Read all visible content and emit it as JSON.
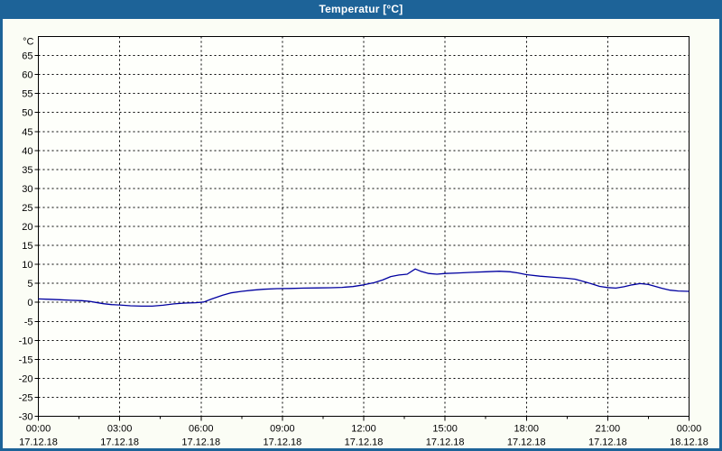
{
  "window": {
    "title": "Temperatur [°C]"
  },
  "colors": {
    "titlebar_bg": "#1d6398",
    "window_border": "#1d6398",
    "window_bg": "#fbfdf5",
    "plot_bg": "#fefffb",
    "grid": "#000000",
    "axis": "#000000",
    "label_text": "#000000",
    "title_text": "#ffffff",
    "line": "#0000a0"
  },
  "chart_data": {
    "type": "line",
    "title": "Temperatur [°C]",
    "y_unit": "°C",
    "ylim": [
      -30,
      70
    ],
    "y_tick_step": 5,
    "y_ticks": [
      65,
      60,
      55,
      50,
      45,
      40,
      35,
      30,
      25,
      20,
      15,
      10,
      5,
      0,
      -5,
      -10,
      -15,
      -20,
      -25,
      -30
    ],
    "x_range_hours": [
      0,
      24
    ],
    "x_minor_tick_hours": 1.5,
    "grid_style": "dashed",
    "x_ticks": [
      {
        "hour": 0,
        "time": "00:00",
        "date": "17.12.18"
      },
      {
        "hour": 3,
        "time": "03:00",
        "date": "17.12.18"
      },
      {
        "hour": 6,
        "time": "06:00",
        "date": "17.12.18"
      },
      {
        "hour": 9,
        "time": "09:00",
        "date": "17.12.18"
      },
      {
        "hour": 12,
        "time": "12:00",
        "date": "17.12.18"
      },
      {
        "hour": 15,
        "time": "15:00",
        "date": "17.12.18"
      },
      {
        "hour": 18,
        "time": "18:00",
        "date": "17.12.18"
      },
      {
        "hour": 21,
        "time": "21:00",
        "date": "17.12.18"
      },
      {
        "hour": 24,
        "time": "00:00",
        "date": "18.12.18"
      }
    ],
    "series": [
      {
        "name": "Temperatur",
        "color": "#0000a0",
        "points": [
          [
            0.0,
            0.9
          ],
          [
            0.4,
            0.8
          ],
          [
            0.8,
            0.7
          ],
          [
            1.2,
            0.55
          ],
          [
            1.6,
            0.45
          ],
          [
            1.9,
            0.25
          ],
          [
            2.1,
            0.0
          ],
          [
            2.4,
            -0.35
          ],
          [
            2.7,
            -0.6
          ],
          [
            3.0,
            -0.7
          ],
          [
            3.4,
            -0.9
          ],
          [
            3.8,
            -1.0
          ],
          [
            4.2,
            -1.0
          ],
          [
            4.6,
            -0.75
          ],
          [
            5.0,
            -0.4
          ],
          [
            5.4,
            -0.2
          ],
          [
            5.8,
            -0.1
          ],
          [
            6.1,
            0.1
          ],
          [
            6.4,
            0.9
          ],
          [
            6.8,
            1.9
          ],
          [
            7.1,
            2.5
          ],
          [
            7.5,
            2.9
          ],
          [
            7.9,
            3.2
          ],
          [
            8.3,
            3.45
          ],
          [
            8.8,
            3.6
          ],
          [
            9.3,
            3.65
          ],
          [
            9.8,
            3.75
          ],
          [
            10.3,
            3.8
          ],
          [
            10.8,
            3.85
          ],
          [
            11.2,
            3.95
          ],
          [
            11.6,
            4.15
          ],
          [
            12.0,
            4.6
          ],
          [
            12.4,
            5.2
          ],
          [
            12.7,
            5.9
          ],
          [
            13.0,
            6.8
          ],
          [
            13.3,
            7.2
          ],
          [
            13.6,
            7.4
          ],
          [
            13.9,
            8.8
          ],
          [
            14.1,
            8.2
          ],
          [
            14.4,
            7.6
          ],
          [
            14.7,
            7.4
          ],
          [
            15.0,
            7.6
          ],
          [
            15.5,
            7.75
          ],
          [
            16.0,
            7.9
          ],
          [
            16.5,
            8.05
          ],
          [
            17.0,
            8.2
          ],
          [
            17.4,
            8.05
          ],
          [
            17.7,
            7.75
          ],
          [
            18.0,
            7.3
          ],
          [
            18.5,
            6.9
          ],
          [
            19.0,
            6.6
          ],
          [
            19.5,
            6.35
          ],
          [
            19.8,
            6.1
          ],
          [
            20.1,
            5.5
          ],
          [
            20.4,
            4.9
          ],
          [
            20.7,
            4.2
          ],
          [
            21.0,
            3.9
          ],
          [
            21.3,
            3.75
          ],
          [
            21.6,
            4.1
          ],
          [
            21.9,
            4.6
          ],
          [
            22.2,
            4.95
          ],
          [
            22.5,
            4.7
          ],
          [
            22.8,
            4.1
          ],
          [
            23.0,
            3.7
          ],
          [
            23.3,
            3.2
          ],
          [
            23.6,
            3.0
          ],
          [
            24.0,
            2.9
          ]
        ]
      }
    ]
  }
}
